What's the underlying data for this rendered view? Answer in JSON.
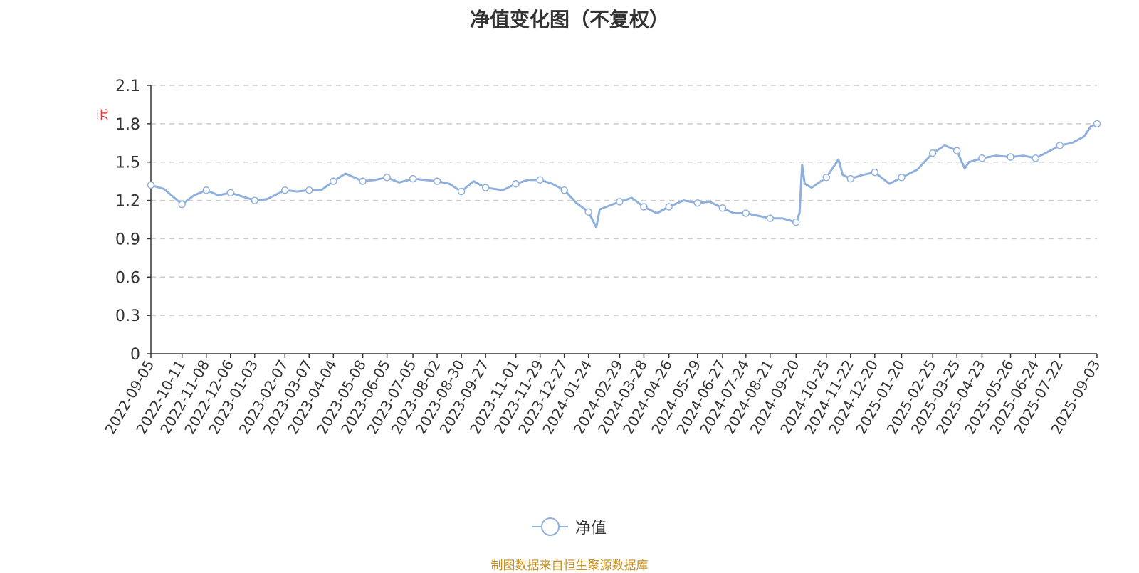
{
  "chart_data": {
    "type": "line",
    "title": "净值变化图（不复权）",
    "ylabel": "元",
    "ylim": [
      0,
      2.1
    ],
    "yticks": [
      "0",
      "0.3",
      "0.6",
      "0.9",
      "1.2",
      "1.5",
      "1.8",
      "2.1"
    ],
    "grid": true,
    "legend_position": "bottom-center",
    "x_tick_labels": [
      "2022-09-05",
      "2022-10-11",
      "2022-11-08",
      "2022-12-06",
      "2023-01-03",
      "2023-02-07",
      "2023-03-07",
      "2023-04-04",
      "2023-05-08",
      "2023-06-05",
      "2023-07-05",
      "2023-08-02",
      "2023-08-30",
      "2023-09-27",
      "2023-11-01",
      "2023-11-29",
      "2023-12-27",
      "2024-01-24",
      "2024-02-29",
      "2024-03-28",
      "2024-04-26",
      "2024-05-29",
      "2024-06-27",
      "2024-07-24",
      "2024-08-21",
      "2024-09-20",
      "2024-10-25",
      "2024-11-22",
      "2024-12-20",
      "2025-01-20",
      "2025-02-25",
      "2025-03-25",
      "2025-04-23",
      "2025-05-26",
      "2025-06-24",
      "2025-07-22",
      "2025-09-03"
    ],
    "series": [
      {
        "name": "净值",
        "color": "#8fb0dc",
        "x": [
          "2022-09-05",
          "2022-09-20",
          "2022-10-11",
          "2022-10-25",
          "2022-11-08",
          "2022-11-22",
          "2022-12-06",
          "2022-12-20",
          "2023-01-03",
          "2023-01-17",
          "2023-02-07",
          "2023-02-21",
          "2023-03-07",
          "2023-03-21",
          "2023-04-04",
          "2023-04-18",
          "2023-05-08",
          "2023-05-22",
          "2023-06-05",
          "2023-06-19",
          "2023-07-05",
          "2023-07-19",
          "2023-08-02",
          "2023-08-16",
          "2023-08-30",
          "2023-09-13",
          "2023-09-27",
          "2023-10-17",
          "2023-11-01",
          "2023-11-15",
          "2023-11-29",
          "2023-12-13",
          "2023-12-27",
          "2024-01-10",
          "2024-01-24",
          "2024-02-02",
          "2024-02-06",
          "2024-02-29",
          "2024-03-14",
          "2024-03-28",
          "2024-04-12",
          "2024-04-26",
          "2024-05-13",
          "2024-05-29",
          "2024-06-12",
          "2024-06-27",
          "2024-07-10",
          "2024-07-24",
          "2024-08-07",
          "2024-08-21",
          "2024-09-04",
          "2024-09-20",
          "2024-09-24",
          "2024-09-27",
          "2024-09-30",
          "2024-10-08",
          "2024-10-25",
          "2024-11-08",
          "2024-11-13",
          "2024-11-22",
          "2024-12-06",
          "2024-12-20",
          "2025-01-06",
          "2025-01-20",
          "2025-02-07",
          "2025-02-25",
          "2025-03-11",
          "2025-03-25",
          "2025-04-03",
          "2025-04-08",
          "2025-04-23",
          "2025-05-09",
          "2025-05-26",
          "2025-06-10",
          "2025-06-24",
          "2025-07-08",
          "2025-07-22",
          "2025-08-05",
          "2025-08-19",
          "2025-08-27",
          "2025-09-03"
        ],
        "values": [
          1.32,
          1.29,
          1.17,
          1.24,
          1.28,
          1.24,
          1.26,
          1.23,
          1.2,
          1.21,
          1.28,
          1.27,
          1.28,
          1.28,
          1.35,
          1.41,
          1.35,
          1.36,
          1.38,
          1.34,
          1.37,
          1.36,
          1.35,
          1.33,
          1.27,
          1.35,
          1.3,
          1.28,
          1.33,
          1.36,
          1.36,
          1.33,
          1.28,
          1.18,
          1.11,
          0.99,
          1.13,
          1.19,
          1.22,
          1.15,
          1.1,
          1.15,
          1.2,
          1.18,
          1.19,
          1.14,
          1.1,
          1.1,
          1.08,
          1.06,
          1.06,
          1.03,
          1.1,
          1.48,
          1.33,
          1.3,
          1.38,
          1.52,
          1.4,
          1.37,
          1.4,
          1.42,
          1.33,
          1.38,
          1.44,
          1.57,
          1.63,
          1.59,
          1.45,
          1.5,
          1.53,
          1.55,
          1.54,
          1.55,
          1.53,
          1.58,
          1.63,
          1.65,
          1.7,
          1.78,
          1.8
        ]
      }
    ]
  },
  "legend": {
    "label": "净值"
  },
  "source_note": "制图数据来自恒生聚源数据库"
}
